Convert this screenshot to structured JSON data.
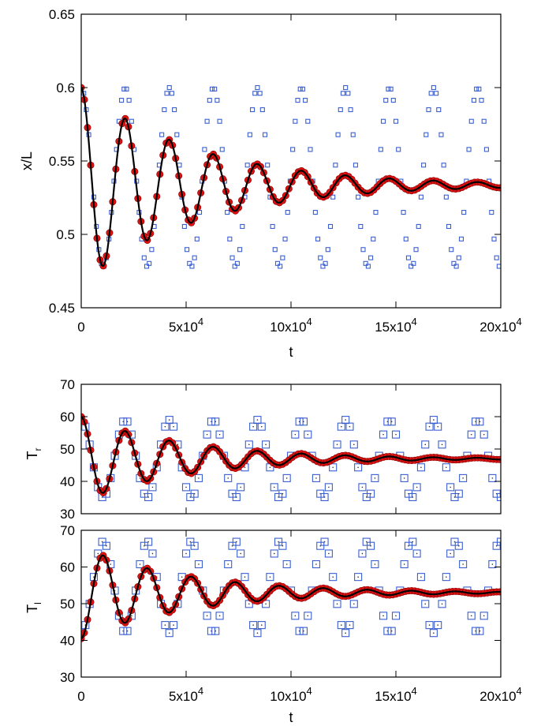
{
  "chart_data": [
    {
      "type": "scatter",
      "panel": "top",
      "xlabel": "t",
      "ylabel": "x/L",
      "xlim": [
        0,
        200000
      ],
      "ylim": [
        0.45,
        0.65
      ],
      "yticks": [
        0.45,
        0.5,
        0.55,
        0.6,
        0.65
      ],
      "ytick_labels": [
        "0.45",
        "0.5",
        "0.55",
        "0.6",
        "0.65"
      ],
      "xticks": [
        0,
        50000,
        100000,
        150000,
        200000
      ],
      "xtick_labels": [
        {
          "base": "0",
          "exp": ""
        },
        {
          "base": "5x10",
          "exp": "4"
        },
        {
          "base": "10x10",
          "exp": "4"
        },
        {
          "base": "15x10",
          "exp": "4"
        },
        {
          "base": "20x10",
          "exp": "4"
        }
      ],
      "series": [
        {
          "style": "blue-open-squares",
          "color": "#3a5fd0",
          "kind": "undamped",
          "mean": 0.539,
          "amp": 0.061,
          "period": 21000,
          "tau": 0,
          "x_step": 1200
        },
        {
          "style": "red-filled-circles",
          "color": "#dd1111",
          "kind": "damped",
          "mean": 0.5335,
          "amp": 0.0665,
          "period": 21000,
          "tau": 55000,
          "x_step": 1500
        },
        {
          "style": "black-line",
          "color": "#000000",
          "kind": "damped",
          "mean": 0.5335,
          "amp": 0.0665,
          "period": 21000,
          "tau": 55000
        }
      ]
    },
    {
      "type": "scatter",
      "panel": "middle",
      "xlabel": "",
      "ylabel": "T",
      "ylabel_sub": "r",
      "xlim": [
        0,
        200000
      ],
      "ylim": [
        30,
        70
      ],
      "yticks": [
        30,
        40,
        50,
        60,
        70
      ],
      "ytick_labels": [
        "30",
        "40",
        "50",
        "60",
        "70"
      ],
      "series": [
        {
          "style": "blue-open-squares",
          "color": "#3a5fd0",
          "kind": "undamped",
          "mean": 47,
          "amp": 12,
          "period": 21000,
          "tau": 0,
          "x_step": 2000
        },
        {
          "style": "red-filled-circles",
          "color": "#dd1111",
          "kind": "damped",
          "mean": 47,
          "amp": 13,
          "period": 21000,
          "tau": 50000,
          "x_step": 1500
        },
        {
          "style": "black-line",
          "color": "#000000",
          "kind": "damped",
          "mean": 47,
          "amp": 13,
          "period": 21000,
          "tau": 50000
        }
      ]
    },
    {
      "type": "scatter",
      "panel": "bottom",
      "xlabel": "t",
      "ylabel": "T",
      "ylabel_sub": "l",
      "xlim": [
        0,
        200000
      ],
      "ylim": [
        30,
        70
      ],
      "yticks": [
        30,
        40,
        50,
        60,
        70
      ],
      "ytick_labels": [
        "30",
        "40",
        "50",
        "60",
        "70"
      ],
      "xticks": [
        0,
        50000,
        100000,
        150000,
        200000
      ],
      "xtick_labels": [
        {
          "base": "0",
          "exp": ""
        },
        {
          "base": "5x10",
          "exp": "4"
        },
        {
          "base": "10x10",
          "exp": "4"
        },
        {
          "base": "15x10",
          "exp": "4"
        },
        {
          "base": "20x10",
          "exp": "4"
        }
      ],
      "series": [
        {
          "style": "blue-open-squares",
          "color": "#3a5fd0",
          "kind": "undamped",
          "mean": 54.5,
          "amp": -12.5,
          "period": 21000,
          "tau": 0,
          "x_step": 2000
        },
        {
          "style": "red-filled-circles",
          "color": "#dd1111",
          "kind": "damped",
          "mean": 53,
          "amp": -12.5,
          "period": 21000,
          "tau": 50000,
          "x_step": 1500
        },
        {
          "style": "black-line",
          "color": "#000000",
          "kind": "damped",
          "mean": 53,
          "amp": -12.5,
          "period": 21000,
          "tau": 50000
        }
      ]
    }
  ]
}
